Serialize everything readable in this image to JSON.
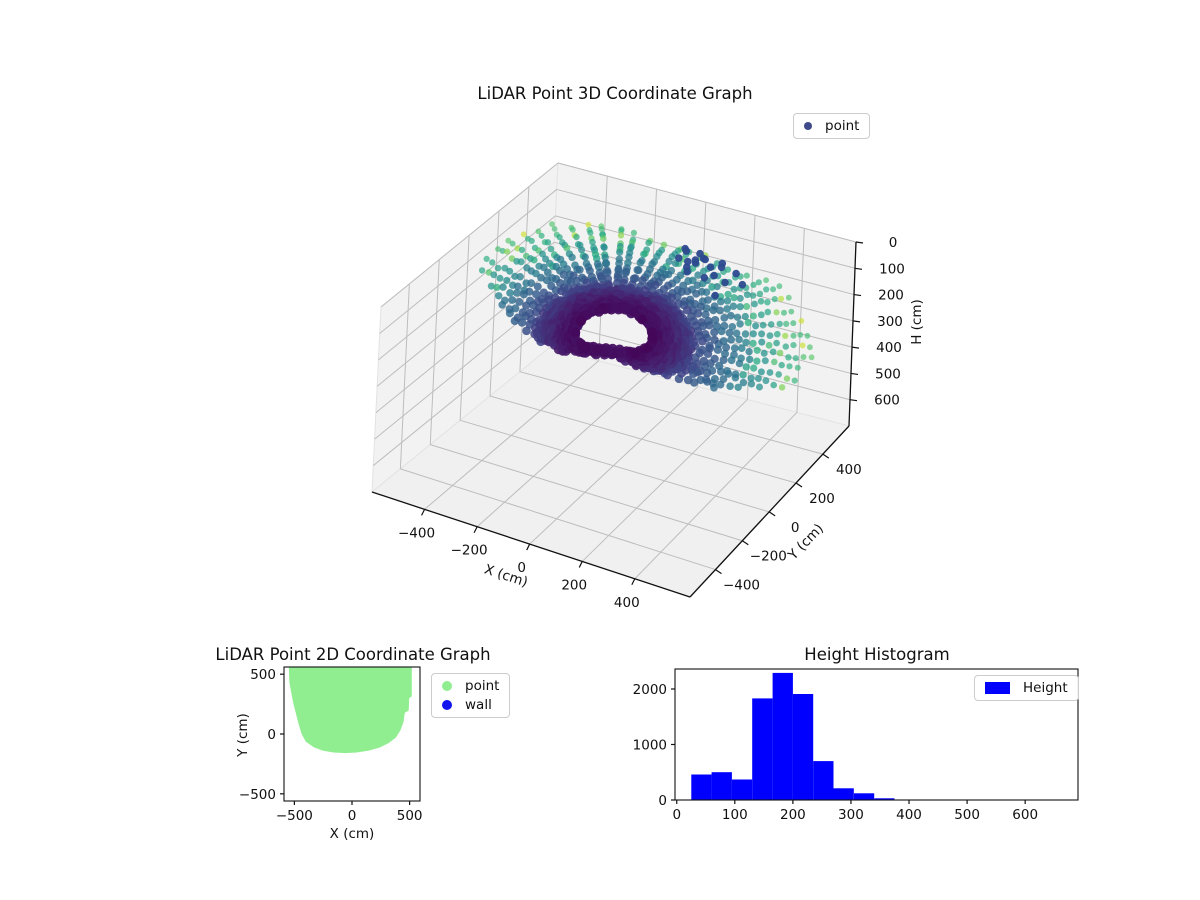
{
  "figure": {
    "background": "#ffffff"
  },
  "colors": {
    "hist_bar": "#0000ff",
    "blob_green": "#90ee90",
    "wall_blue": "#1414f0",
    "legend3d_marker": "#3e4a89",
    "wall_cluster_navy": "#2d4a8f",
    "viridis_stops": [
      [
        0.0,
        "#440154"
      ],
      [
        0.13,
        "#471d6c"
      ],
      [
        0.25,
        "#404387"
      ],
      [
        0.38,
        "#345f8d"
      ],
      [
        0.5,
        "#29788e"
      ],
      [
        0.62,
        "#21918c"
      ],
      [
        0.75,
        "#27ad81"
      ],
      [
        0.87,
        "#5cc863"
      ],
      [
        0.95,
        "#aadc32"
      ],
      [
        1.0,
        "#fde725"
      ]
    ]
  },
  "chart_data": [
    {
      "id": "lidar3d",
      "type": "scatter",
      "projection": "3d",
      "title": "LiDAR Point 3D Coordinate Graph",
      "xlabel": "X (cm)",
      "ylabel": "Y (cm)",
      "zlabel": "H (cm)",
      "xticks": [
        -400,
        -200,
        0,
        200,
        400
      ],
      "yticks": [
        -400,
        -200,
        0,
        200,
        400
      ],
      "zticks": [
        0,
        100,
        200,
        300,
        400,
        500,
        600
      ],
      "xlim": [
        -600,
        610
      ],
      "ylim": [
        -590,
        595
      ],
      "zlim": [
        0,
        700
      ],
      "zaxis_inverted": true,
      "legend": [
        {
          "label": "point",
          "marker_color": "#3e4a89"
        }
      ],
      "cloud": {
        "description": "LiDAR sweep: radial spokes from sensor at origin; color = viridis(range); dense dark-purple near band, green/teal far rim, sparse yellow far points",
        "seed": 42,
        "spokes": 72,
        "spoke_step_deg": 5,
        "r_min": 130,
        "r_step": 27,
        "r_cap": 680,
        "near_dense_max_r": 265,
        "room_envelope": {
          "cx": 0,
          "cy": 548,
          "radius": 700
        },
        "clamp_xy": 585,
        "terrain": {
          "h_base": 208,
          "h_slope": 52,
          "amp1": 55,
          "amp2": 25
        },
        "wall_cluster": {
          "count": 16,
          "x_range": [
            60,
            210
          ],
          "y_range": [
            310,
            430
          ],
          "h_range": [
            70,
            125
          ]
        },
        "wall_strays": {
          "count": 4,
          "x_range": [
            150,
            330
          ],
          "y_range": [
            260,
            380
          ],
          "h_range": [
            85,
            150
          ]
        }
      }
    },
    {
      "id": "lidar2d",
      "type": "scatter",
      "projection": "2d",
      "title": "LiDAR Point 2D Coordinate Graph",
      "xlabel": "X (cm)",
      "ylabel": "Y (cm)",
      "xticks": [
        -500,
        0,
        500
      ],
      "yticks": [
        -500,
        0,
        500
      ],
      "xlim": [
        -590,
        590
      ],
      "ylim": [
        -560,
        560
      ],
      "legend": [
        {
          "label": "point",
          "marker_color": "#90ee90"
        },
        {
          "label": "wall",
          "marker_color": "#1414f0"
        }
      ],
      "point_region_outline": [
        [
          -548,
          560
        ],
        [
          -543,
          430
        ],
        [
          -510,
          260
        ],
        [
          -465,
          90
        ],
        [
          -437,
          0
        ],
        [
          -400,
          -65
        ],
        [
          -330,
          -112
        ],
        [
          -250,
          -140
        ],
        [
          -160,
          -155
        ],
        [
          -60,
          -160
        ],
        [
          40,
          -155
        ],
        [
          140,
          -140
        ],
        [
          235,
          -115
        ],
        [
          315,
          -78
        ],
        [
          380,
          -30
        ],
        [
          420,
          30
        ],
        [
          447,
          100
        ],
        [
          458,
          178
        ],
        [
          492,
          196
        ],
        [
          496,
          300
        ],
        [
          519,
          316
        ],
        [
          519,
          560
        ]
      ]
    },
    {
      "id": "height_hist",
      "type": "bar",
      "title": "Height Histogram",
      "legend": [
        {
          "label": "Height",
          "patch_color": "#0000ff"
        }
      ],
      "bin_start": 25,
      "bin_width": 35,
      "bin_edges": [
        25,
        60,
        95,
        130,
        165,
        200,
        235,
        270,
        305,
        340,
        375
      ],
      "values": [
        460,
        500,
        370,
        1830,
        2290,
        1910,
        700,
        210,
        120,
        30
      ],
      "xticks": [
        0,
        100,
        200,
        300,
        400,
        500,
        600
      ],
      "yticks": [
        0,
        1000,
        2000
      ],
      "xlim": [
        -3,
        691
      ],
      "ylim": [
        0,
        2360
      ]
    }
  ]
}
